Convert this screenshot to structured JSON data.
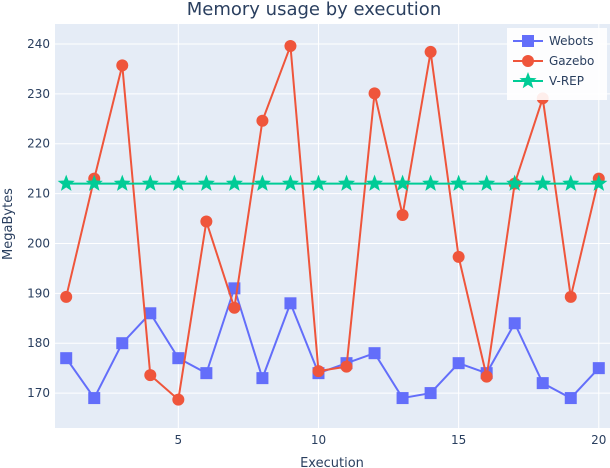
{
  "chart_data": {
    "type": "line",
    "title": "Memory usage by execution",
    "xlabel": "Execution",
    "ylabel": "MegaBytes",
    "x": [
      1,
      2,
      3,
      4,
      5,
      6,
      7,
      8,
      9,
      10,
      11,
      12,
      13,
      14,
      15,
      16,
      17,
      18,
      19,
      20
    ],
    "xlim": [
      0.6,
      20.4
    ],
    "ylim": [
      163,
      244
    ],
    "xticks": [
      5,
      10,
      15,
      20
    ],
    "yticks": [
      170,
      180,
      190,
      200,
      210,
      220,
      230,
      240
    ],
    "grid": true,
    "legend_position": "top-right",
    "series": [
      {
        "name": "Webots",
        "marker": "square",
        "color": "#636efa",
        "values": [
          177,
          169,
          180,
          186,
          177,
          174,
          191,
          173,
          188,
          174,
          176,
          178,
          169,
          170,
          176,
          174,
          184,
          172,
          169,
          175
        ]
      },
      {
        "name": "Gazebo",
        "marker": "circle",
        "color": "#ef553b",
        "values": [
          189.3,
          213,
          235.7,
          173.6,
          168.7,
          204.4,
          187.1,
          224.6,
          239.6,
          174.4,
          175.3,
          230.1,
          205.7,
          238.4,
          197.3,
          173.3,
          212,
          229.1,
          189.3,
          213
        ]
      },
      {
        "name": "V-REP",
        "marker": "star",
        "color": "#00cc96",
        "values": [
          212,
          212,
          212,
          212,
          212,
          212,
          212,
          212,
          212,
          212,
          212,
          212,
          212,
          212,
          212,
          212,
          212,
          212,
          212,
          212
        ]
      }
    ]
  },
  "colors": {
    "plot_background": "#e5ecf6",
    "grid": "#ffffff",
    "text": "#2a3f5f"
  }
}
